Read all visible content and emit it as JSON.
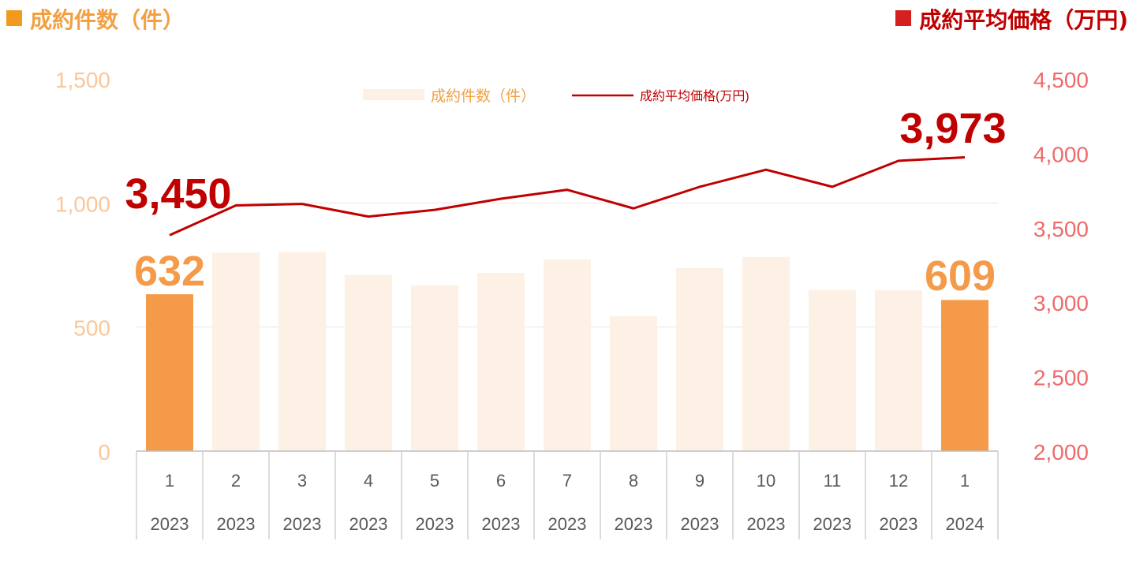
{
  "header": {
    "left_title": "成約件数（件）",
    "right_title": "成約平均価格（万円)",
    "left_color": "#f29a1d",
    "right_color": "#d42020"
  },
  "legend": {
    "bar_label": "成約件数（件）",
    "line_label": "成約平均価格(万円)",
    "bar_color": "#fdf1e6",
    "line_color": "#c00000"
  },
  "colors": {
    "highlight_bar": "#f59a48",
    "faded_bar": "#fdf1e6",
    "line": "#c00000",
    "left_axis": "#f9c79a",
    "right_axis": "#ef6a6a",
    "bar_label": "#f59a48",
    "line_label": "#c00000"
  },
  "chart_data": {
    "type": "bar",
    "categories": [
      "1",
      "2",
      "3",
      "4",
      "5",
      "6",
      "7",
      "8",
      "9",
      "10",
      "11",
      "12",
      "1"
    ],
    "years": [
      "2023",
      "2023",
      "2023",
      "2023",
      "2023",
      "2023",
      "2023",
      "2023",
      "2023",
      "2023",
      "2023",
      "2023",
      "2024"
    ],
    "series": [
      {
        "name": "成約件数（件）",
        "type": "bar",
        "axis": "left",
        "values": [
          632,
          800,
          802,
          710,
          668,
          718,
          772,
          544,
          738,
          782,
          650,
          648,
          609
        ],
        "highlighted": [
          true,
          false,
          false,
          false,
          false,
          false,
          false,
          false,
          false,
          false,
          false,
          false,
          true
        ]
      },
      {
        "name": "成約平均価格(万円)",
        "type": "line",
        "axis": "right",
        "values": [
          3450,
          3650,
          3660,
          3575,
          3620,
          3695,
          3755,
          3630,
          3775,
          3890,
          3775,
          3950,
          3973
        ]
      }
    ],
    "y_left": {
      "min": 0,
      "max": 1500,
      "ticks": [
        "0",
        "500",
        "1,000",
        "1,500"
      ]
    },
    "y_right": {
      "min": 2000,
      "max": 4500,
      "ticks": [
        "2,000",
        "2,500",
        "3,000",
        "3,500",
        "4,000",
        "4,500"
      ]
    },
    "data_labels": [
      {
        "series": 0,
        "index": 0,
        "text": "632"
      },
      {
        "series": 0,
        "index": 12,
        "text": "609"
      },
      {
        "series": 1,
        "index": 0,
        "text": "3,450"
      },
      {
        "series": 1,
        "index": 12,
        "text": "3,973"
      }
    ],
    "grid": true,
    "legend_position": "top-center"
  }
}
